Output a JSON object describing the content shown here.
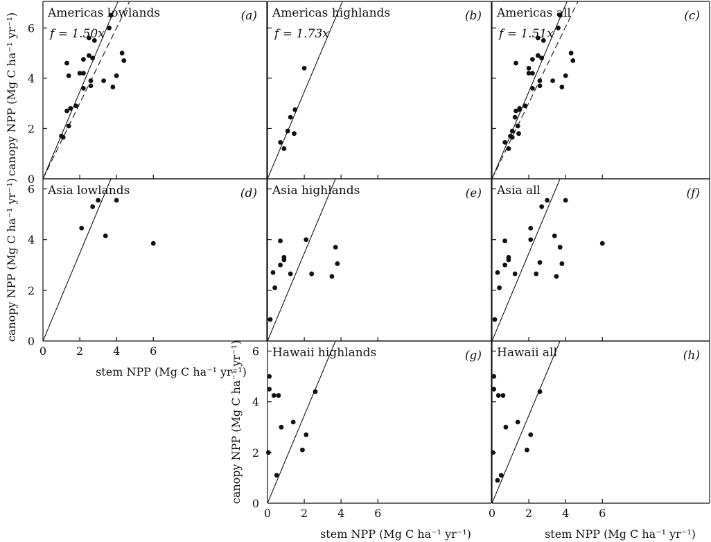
{
  "chart_data": [
    {
      "id": "a",
      "type": "scatter",
      "title": "Americas lowlands",
      "panel_letter": "(a)",
      "fit_label": "f = 1.50x",
      "xlim": [
        0,
        7
      ],
      "ylim": [
        0,
        7
      ],
      "xticks": [
        "",
        "",
        "",
        ""
      ],
      "yticks": [
        "0",
        "2",
        "4",
        "6"
      ],
      "xlabel": "",
      "ylabel": "canopy NPP (Mg C ha⁻¹ yr⁻¹)",
      "lines": [
        {
          "style": "solid",
          "slope": 1.73
        },
        {
          "style": "dashed",
          "slope": 1.5
        }
      ],
      "points": [
        [
          1.0,
          1.7
        ],
        [
          1.1,
          1.65
        ],
        [
          1.3,
          2.7
        ],
        [
          1.3,
          4.6
        ],
        [
          1.4,
          4.1
        ],
        [
          1.4,
          2.1
        ],
        [
          1.5,
          2.8
        ],
        [
          1.8,
          2.9
        ],
        [
          2.0,
          4.2
        ],
        [
          2.2,
          3.6
        ],
        [
          2.2,
          4.75
        ],
        [
          2.2,
          4.2
        ],
        [
          2.5,
          5.6
        ],
        [
          2.5,
          4.9
        ],
        [
          2.6,
          3.9
        ],
        [
          2.6,
          3.7
        ],
        [
          2.7,
          4.8
        ],
        [
          2.8,
          5.5
        ],
        [
          3.3,
          3.9
        ],
        [
          3.6,
          6.0
        ],
        [
          3.7,
          6.5
        ],
        [
          3.8,
          3.65
        ],
        [
          4.0,
          4.1
        ],
        [
          4.3,
          5.0
        ],
        [
          4.4,
          4.7
        ]
      ]
    },
    {
      "id": "b",
      "type": "scatter",
      "title": "Americas highlands",
      "panel_letter": "(b)",
      "fit_label": "f = 1.73x",
      "xlim": [
        0,
        7
      ],
      "ylim": [
        0,
        7
      ],
      "xticks": [
        "",
        "",
        "",
        ""
      ],
      "yticks": [
        "",
        "",
        "",
        ""
      ],
      "xlabel": "",
      "ylabel": "",
      "lines": [
        {
          "style": "solid",
          "slope": 1.73
        }
      ],
      "points": [
        [
          0.7,
          1.45
        ],
        [
          0.9,
          1.2
        ],
        [
          1.1,
          1.9
        ],
        [
          1.25,
          2.45
        ],
        [
          1.45,
          1.8
        ],
        [
          1.5,
          2.75
        ],
        [
          2.0,
          4.4
        ]
      ]
    },
    {
      "id": "c",
      "type": "scatter",
      "title": "Americas all",
      "panel_letter": "(c)",
      "fit_label": "f = 1.51x",
      "xlim": [
        0,
        7
      ],
      "ylim": [
        0,
        7
      ],
      "xticks": [
        "",
        "",
        "",
        ""
      ],
      "yticks": [
        "",
        "",
        "",
        ""
      ],
      "xlabel": "",
      "ylabel": "",
      "lines": [
        {
          "style": "solid",
          "slope": 1.73
        },
        {
          "style": "dashed",
          "slope": 1.51
        }
      ],
      "points": [
        [
          0.7,
          1.45
        ],
        [
          0.9,
          1.2
        ],
        [
          1.0,
          1.7
        ],
        [
          1.1,
          1.65
        ],
        [
          1.1,
          1.9
        ],
        [
          1.25,
          2.45
        ],
        [
          1.3,
          2.7
        ],
        [
          1.3,
          4.6
        ],
        [
          1.4,
          2.1
        ],
        [
          1.45,
          1.8
        ],
        [
          1.5,
          2.75
        ],
        [
          1.5,
          2.8
        ],
        [
          1.8,
          2.9
        ],
        [
          2.0,
          4.4
        ],
        [
          2.0,
          4.2
        ],
        [
          2.2,
          3.6
        ],
        [
          2.2,
          4.75
        ],
        [
          2.2,
          4.2
        ],
        [
          2.5,
          5.6
        ],
        [
          2.5,
          4.9
        ],
        [
          2.6,
          3.9
        ],
        [
          2.6,
          3.7
        ],
        [
          2.7,
          4.8
        ],
        [
          2.8,
          5.5
        ],
        [
          3.3,
          3.9
        ],
        [
          3.6,
          6.0
        ],
        [
          3.7,
          6.5
        ],
        [
          3.8,
          3.65
        ],
        [
          4.0,
          4.1
        ],
        [
          4.3,
          5.0
        ],
        [
          4.4,
          4.7
        ]
      ]
    },
    {
      "id": "d",
      "type": "scatter",
      "title": "Asia lowlands",
      "panel_letter": "(d)",
      "fit_label": "",
      "xlim": [
        0,
        7
      ],
      "ylim": [
        0,
        7
      ],
      "xticks": [
        "0",
        "2",
        "4",
        "6"
      ],
      "yticks": [
        "0",
        "2",
        "4",
        "6"
      ],
      "xlabel": "stem NPP (Mg C ha⁻¹ yr⁻¹)",
      "ylabel": "canopy NPP (Mg C ha⁻¹ yr⁻¹)",
      "lines": [
        {
          "style": "solid",
          "slope": 1.73
        }
      ],
      "points": [
        [
          2.1,
          4.45
        ],
        [
          2.7,
          5.3
        ],
        [
          3.0,
          5.55
        ],
        [
          3.4,
          4.15
        ],
        [
          4.0,
          5.55
        ],
        [
          6.0,
          3.85
        ]
      ]
    },
    {
      "id": "e",
      "type": "scatter",
      "title": "Asia highlands",
      "panel_letter": "(e)",
      "fit_label": "",
      "xlim": [
        0,
        7
      ],
      "ylim": [
        0,
        7
      ],
      "xticks": [
        "",
        "",
        "",
        ""
      ],
      "yticks": [
        "",
        "",
        "",
        ""
      ],
      "xlabel": "",
      "ylabel": "",
      "lines": [
        {
          "style": "solid",
          "slope": 1.73
        }
      ],
      "points": [
        [
          0.15,
          0.85
        ],
        [
          0.3,
          2.7
        ],
        [
          0.4,
          2.1
        ],
        [
          0.7,
          3.0
        ],
        [
          0.7,
          3.95
        ],
        [
          0.9,
          3.2
        ],
        [
          0.9,
          3.3
        ],
        [
          1.25,
          2.65
        ],
        [
          2.1,
          4.0
        ],
        [
          2.4,
          2.65
        ],
        [
          3.5,
          2.55
        ],
        [
          3.7,
          3.7
        ],
        [
          3.8,
          3.05
        ]
      ]
    },
    {
      "id": "f",
      "type": "scatter",
      "title": "Asia all",
      "panel_letter": "(f)",
      "fit_label": "",
      "xlim": [
        0,
        7
      ],
      "ylim": [
        0,
        7
      ],
      "xticks": [
        "",
        "",
        "",
        ""
      ],
      "yticks": [
        "",
        "",
        "",
        ""
      ],
      "xlabel": "",
      "ylabel": "",
      "lines": [
        {
          "style": "solid",
          "slope": 1.73
        }
      ],
      "points": [
        [
          0.15,
          0.85
        ],
        [
          0.3,
          2.7
        ],
        [
          0.4,
          2.1
        ],
        [
          0.7,
          3.0
        ],
        [
          0.7,
          3.95
        ],
        [
          0.9,
          3.2
        ],
        [
          0.9,
          3.3
        ],
        [
          1.25,
          2.65
        ],
        [
          2.1,
          4.45
        ],
        [
          2.1,
          4.0
        ],
        [
          2.4,
          2.65
        ],
        [
          2.6,
          3.1
        ],
        [
          2.7,
          5.3
        ],
        [
          3.0,
          5.55
        ],
        [
          3.4,
          4.15
        ],
        [
          3.5,
          2.55
        ],
        [
          3.7,
          3.7
        ],
        [
          3.8,
          3.05
        ],
        [
          4.0,
          5.55
        ],
        [
          6.0,
          3.85
        ]
      ]
    },
    {
      "id": "g",
      "type": "scatter",
      "title": "Hawaii highlands",
      "panel_letter": "(g)",
      "fit_label": "",
      "xlim": [
        0,
        7
      ],
      "ylim": [
        0,
        7
      ],
      "xticks": [
        "0",
        "2",
        "4",
        "6"
      ],
      "yticks": [
        "0",
        "2",
        "4",
        "6"
      ],
      "xlabel": "stem NPP (Mg C ha⁻¹ yr⁻¹)",
      "ylabel": "canopy NPP (Mg C ha⁻¹ yr⁻¹)",
      "lines": [
        {
          "style": "solid",
          "slope": 1.73
        }
      ],
      "points": [
        [
          0.05,
          2.0
        ],
        [
          0.1,
          5.0
        ],
        [
          0.1,
          4.5
        ],
        [
          0.35,
          4.25
        ],
        [
          0.5,
          1.1
        ],
        [
          0.6,
          4.25
        ],
        [
          0.75,
          3.0
        ],
        [
          1.4,
          3.2
        ],
        [
          1.9,
          2.1
        ],
        [
          2.1,
          2.7
        ],
        [
          2.6,
          4.4
        ]
      ]
    },
    {
      "id": "h",
      "type": "scatter",
      "title": "Hawaii all",
      "panel_letter": "(h)",
      "fit_label": "",
      "xlim": [
        0,
        7
      ],
      "ylim": [
        0,
        7
      ],
      "xticks": [
        "0",
        "2",
        "4",
        "6"
      ],
      "yticks": [
        "",
        "",
        "",
        ""
      ],
      "xlabel": "stem NPP (Mg C ha⁻¹ yr⁻¹)",
      "ylabel": "",
      "lines": [
        {
          "style": "solid",
          "slope": 1.73
        }
      ],
      "points": [
        [
          0.05,
          2.0
        ],
        [
          0.1,
          5.0
        ],
        [
          0.1,
          4.5
        ],
        [
          0.3,
          0.9
        ],
        [
          0.35,
          4.25
        ],
        [
          0.5,
          1.1
        ],
        [
          0.6,
          4.25
        ],
        [
          0.75,
          3.0
        ],
        [
          1.4,
          3.2
        ],
        [
          1.9,
          2.1
        ],
        [
          2.1,
          2.7
        ],
        [
          2.6,
          4.4
        ]
      ]
    }
  ]
}
